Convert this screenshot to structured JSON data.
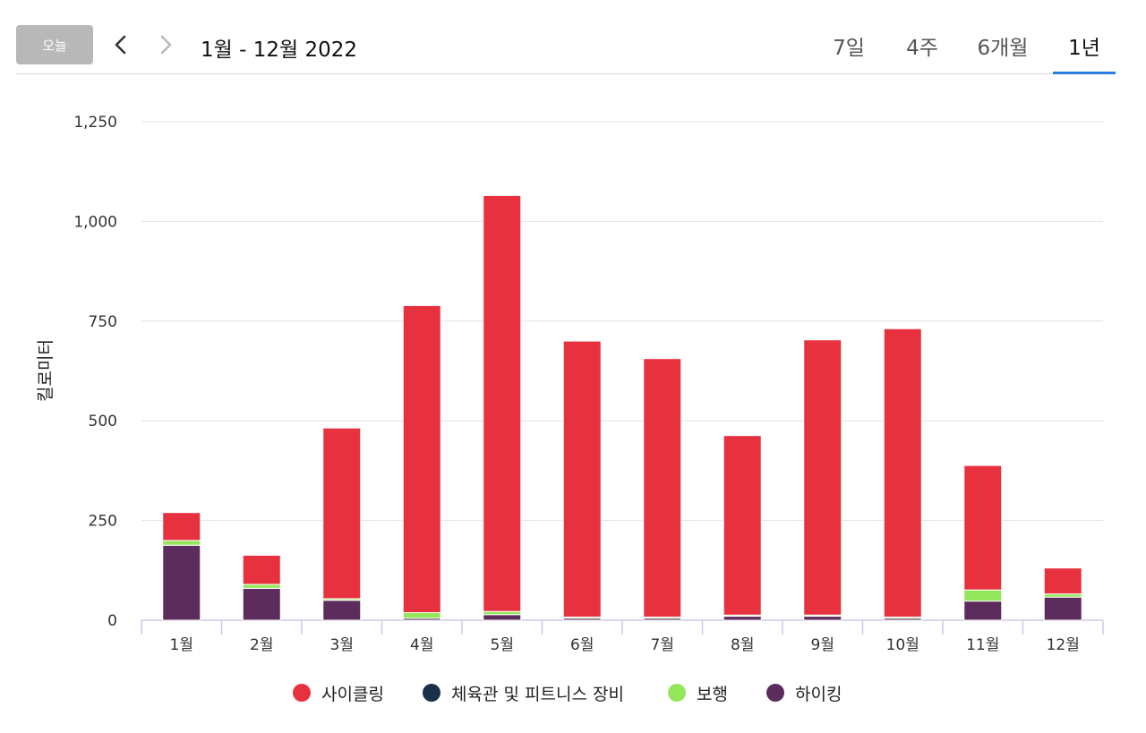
{
  "toolbar": {
    "today_label": "오늘",
    "prev_icon": "chevron-left-icon",
    "next_icon": "chevron-right-icon",
    "range_label": "1월 - 12월 2022",
    "tabs": [
      {
        "label": "7일",
        "active": false
      },
      {
        "label": "4주",
        "active": false
      },
      {
        "label": "6개월",
        "active": false
      },
      {
        "label": "1년",
        "active": true
      }
    ],
    "accent_color": "#2a7de1"
  },
  "chart_data": {
    "type": "bar",
    "stacked": true,
    "ylabel": "킬로미터",
    "xlabel": "",
    "ylim": [
      0,
      1250
    ],
    "yticks": [
      0,
      250,
      500,
      750,
      1000,
      1250
    ],
    "ytick_labels": [
      "0",
      "250",
      "500",
      "750",
      "1,000",
      "1,250"
    ],
    "grid": true,
    "legend_position": "bottom",
    "categories": [
      "1월",
      "2월",
      "3월",
      "4월",
      "5월",
      "6월",
      "7월",
      "8월",
      "9월",
      "10월",
      "11월",
      "12월"
    ],
    "series": [
      {
        "name": "하이킹",
        "color": "#5c2d5c",
        "values": [
          188,
          80,
          50,
          5,
          14,
          5,
          5,
          10,
          10,
          5,
          48,
          58
        ]
      },
      {
        "name": "체육관 및 피트니스 장비",
        "color": "#1a2f4a",
        "values": [
          0,
          0,
          0,
          0,
          0,
          0,
          0,
          0,
          0,
          0,
          0,
          0
        ]
      },
      {
        "name": "보행",
        "color": "#93e65a",
        "values": [
          12,
          10,
          4,
          14,
          8,
          3,
          3,
          3,
          3,
          3,
          28,
          8
        ]
      },
      {
        "name": "사이클링",
        "color": "#e8313e",
        "values": [
          70,
          73,
          428,
          770,
          1043,
          692,
          648,
          450,
          690,
          723,
          312,
          65
        ]
      }
    ]
  }
}
